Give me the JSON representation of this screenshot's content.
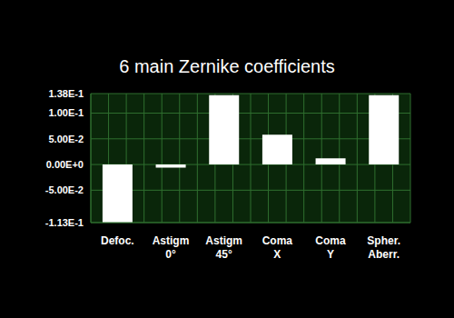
{
  "chart_data": {
    "type": "bar",
    "title": "6 main Zernike coefficients",
    "categories": [
      "Defoc.",
      "Astigm 0°",
      "Astigm 45°",
      "Coma X",
      "Coma Y",
      "Spher. Aberr."
    ],
    "values": [
      -0.113,
      -0.006,
      0.135,
      0.058,
      0.012,
      0.135
    ],
    "color": "#ffffff",
    "ylim": [
      -0.113,
      0.138
    ],
    "yticks": [
      {
        "value": -0.113,
        "label": "-1.13E-1"
      },
      {
        "value": -0.05,
        "label": "-5.00E-2"
      },
      {
        "value": 0,
        "label": "0.00E+0"
      },
      {
        "value": 0.05,
        "label": "5.00E-2"
      },
      {
        "value": 0.1,
        "label": "1.00E-1"
      },
      {
        "value": 0.138,
        "label": "1.38E-1"
      }
    ],
    "grid": true
  }
}
